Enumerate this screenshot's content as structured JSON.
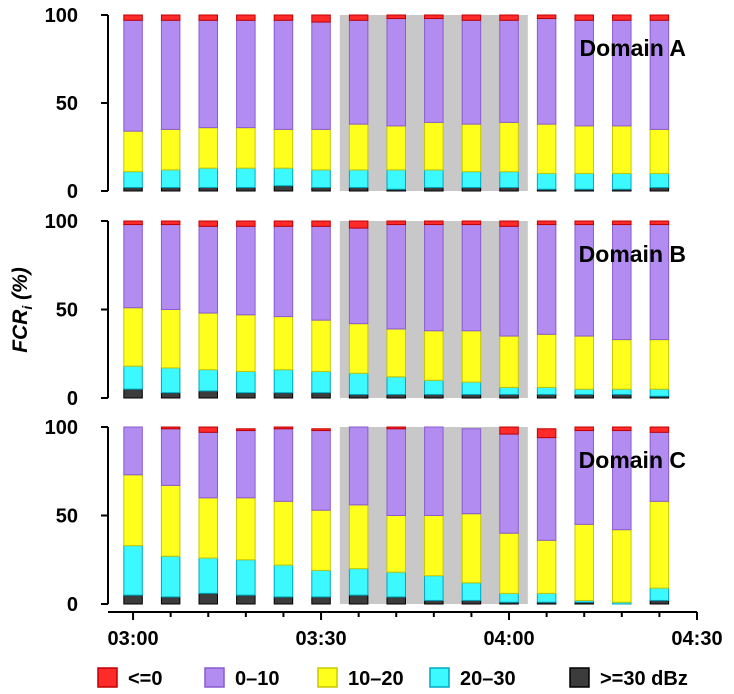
{
  "chart_data": {
    "type": "bar",
    "stacked": true,
    "ylabel_main": "FCR",
    "ylabel_sub": "i",
    "ylabel_unit": " (%)",
    "ylim": [
      0,
      100
    ],
    "yticks": [
      0,
      50,
      100
    ],
    "xticks": [
      "03:00",
      "03:30",
      "04:00",
      "04:30"
    ],
    "x_minutes": [
      0,
      6,
      12,
      18,
      24,
      30,
      36,
      42,
      48,
      54,
      60,
      66,
      72,
      78,
      84
    ],
    "xlim_minutes": [
      -4,
      90
    ],
    "shaded_range_minutes": [
      33,
      63
    ],
    "categories": [
      "<=0",
      "0–10",
      "10–20",
      "20–30",
      ">=30 dBz"
    ],
    "colors": [
      "#ff2a2a",
      "#b28cf0",
      "#ffff1e",
      "#3cf8ff",
      "#3c3c3c"
    ],
    "border_colors": [
      "#c00000",
      "#8a5cd0",
      "#c8c800",
      "#00a8c0",
      "#000000"
    ],
    "panels": [
      {
        "label": "Domain A",
        "series": [
          {
            "name": "<=0",
            "values": [
              3,
              3,
              3,
              3,
              3,
              4,
              3,
              2,
              2,
              3,
              3,
              2,
              3,
              3,
              3
            ]
          },
          {
            "name": "0–10",
            "values": [
              63,
              62,
              61,
              61,
              62,
              61,
              59,
              61,
              59,
              59,
              58,
              60,
              60,
              60,
              62
            ]
          },
          {
            "name": "10–20",
            "values": [
              23,
              23,
              23,
              23,
              22,
              23,
              26,
              25,
              27,
              27,
              28,
              28,
              27,
              27,
              25
            ]
          },
          {
            "name": "20–30",
            "values": [
              9,
              10,
              11,
              11,
              10,
              10,
              10,
              11,
              10,
              9,
              9,
              9,
              9,
              9,
              8
            ]
          },
          {
            "name": ">=30 dBz",
            "values": [
              2,
              2,
              2,
              2,
              3,
              2,
              2,
              1,
              2,
              2,
              2,
              1,
              1,
              1,
              2
            ]
          }
        ]
      },
      {
        "label": "Domain B",
        "series": [
          {
            "name": "<=0",
            "values": [
              2,
              2,
              3,
              3,
              3,
              3,
              4,
              2,
              2,
              2,
              3,
              2,
              2,
              2,
              2
            ]
          },
          {
            "name": "0–10",
            "values": [
              47,
              48,
              49,
              50,
              51,
              53,
              54,
              59,
              60,
              60,
              62,
              62,
              63,
              65,
              65
            ]
          },
          {
            "name": "10–20",
            "values": [
              33,
              33,
              32,
              32,
              30,
              29,
              28,
              27,
              28,
              29,
              29,
              30,
              30,
              28,
              28
            ]
          },
          {
            "name": "20–30",
            "values": [
              13,
              14,
              12,
              12,
              13,
              12,
              12,
              10,
              8,
              7,
              4,
              4,
              3,
              3,
              4
            ]
          },
          {
            "name": ">=30 dBz",
            "values": [
              5,
              3,
              4,
              3,
              3,
              3,
              2,
              2,
              2,
              2,
              2,
              2,
              2,
              2,
              1
            ]
          }
        ]
      },
      {
        "label": "Domain C",
        "series": [
          {
            "name": "<=0",
            "values": [
              0,
              1,
              3,
              1,
              1,
              1,
              0,
              1,
              0,
              0,
              4,
              5,
              2,
              2,
              3
            ]
          },
          {
            "name": "0–10",
            "values": [
              27,
              32,
              37,
              38,
              41,
              45,
              44,
              49,
              50,
              48,
              56,
              58,
              53,
              56,
              39
            ]
          },
          {
            "name": "10–20",
            "values": [
              40,
              40,
              34,
              35,
              36,
              34,
              36,
              32,
              34,
              39,
              34,
              30,
              43,
              41,
              49
            ]
          },
          {
            "name": "20–30",
            "values": [
              28,
              23,
              20,
              20,
              18,
              15,
              15,
              14,
              14,
              10,
              5,
              5,
              1,
              1,
              7
            ]
          },
          {
            "name": ">=30 dBz",
            "values": [
              5,
              4,
              6,
              5,
              4,
              4,
              5,
              4,
              2,
              2,
              1,
              1,
              1,
              0,
              2
            ]
          }
        ]
      }
    ]
  }
}
